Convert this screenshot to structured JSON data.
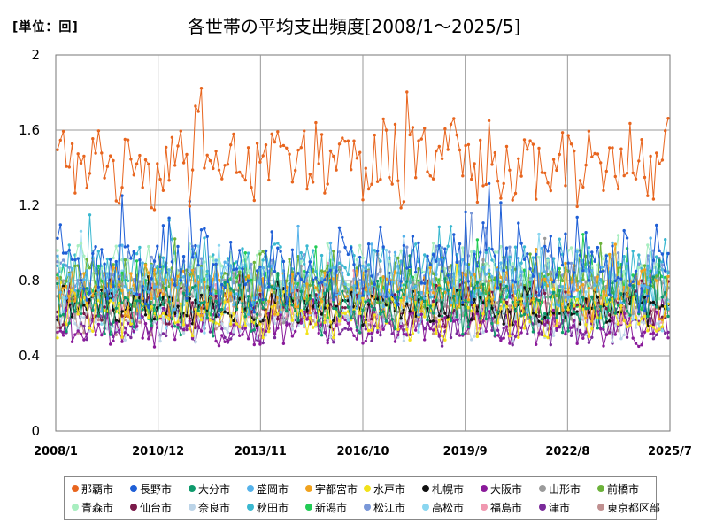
{
  "unit_label": "[単位：回]",
  "chart_data": {
    "type": "line",
    "title": "各世帯の平均支出頻度[2008/1～2025/5]",
    "xlabel": "",
    "ylabel": "",
    "ylim": [
      0,
      2
    ],
    "yticks": [
      "0",
      "0.4",
      "0.8",
      "1.2",
      "1.6",
      "2"
    ],
    "xticks": [
      "2008/1",
      "2010/12",
      "2013/11",
      "2016/10",
      "2019/9",
      "2022/8",
      "2025/7"
    ],
    "grid": true,
    "legend_position": "bottom",
    "series": [
      {
        "name": "那覇市",
        "color": "#e8651e",
        "level": 1.42,
        "spread": 0.22
      },
      {
        "name": "長野市",
        "color": "#1f5fd6",
        "level": 0.86,
        "spread": 0.22
      },
      {
        "name": "大分市",
        "color": "#0e9a6c",
        "level": 0.66,
        "spread": 0.14
      },
      {
        "name": "盛岡市",
        "color": "#55b2ea",
        "level": 0.8,
        "spread": 0.18
      },
      {
        "name": "宇都宮市",
        "color": "#f0a21e",
        "level": 0.74,
        "spread": 0.14
      },
      {
        "name": "水戸市",
        "color": "#f2e21a",
        "level": 0.62,
        "spread": 0.12
      },
      {
        "name": "札幌市",
        "color": "#111111",
        "level": 0.66,
        "spread": 0.1
      },
      {
        "name": "大阪市",
        "color": "#8a1a9a",
        "level": 0.55,
        "spread": 0.1
      },
      {
        "name": "山形市",
        "color": "#9a9a9a",
        "level": 0.72,
        "spread": 0.14
      },
      {
        "name": "前橋市",
        "color": "#6cb23a",
        "level": 0.8,
        "spread": 0.14
      },
      {
        "name": "青森市",
        "color": "#a8eec0",
        "level": 0.84,
        "spread": 0.14
      },
      {
        "name": "仙台市",
        "color": "#7a1a4a",
        "level": 0.68,
        "spread": 0.12
      },
      {
        "name": "奈良市",
        "color": "#bcd4e8",
        "level": 0.6,
        "spread": 0.12
      },
      {
        "name": "秋田市",
        "color": "#3ab8d0",
        "level": 0.82,
        "spread": 0.18
      },
      {
        "name": "新潟市",
        "color": "#22cc55",
        "level": 0.74,
        "spread": 0.14
      },
      {
        "name": "松江市",
        "color": "#7a98d8",
        "level": 0.8,
        "spread": 0.16
      },
      {
        "name": "高松市",
        "color": "#8ad6f0",
        "level": 0.7,
        "spread": 0.16
      },
      {
        "name": "福島市",
        "color": "#f098b0",
        "level": 0.66,
        "spread": 0.12
      },
      {
        "name": "津市",
        "color": "#7a2a9a",
        "level": 0.56,
        "spread": 0.1
      },
      {
        "name": "東京都区部",
        "color": "#c09090",
        "level": 0.62,
        "spread": 0.1
      }
    ],
    "points_per_series": 209
  }
}
